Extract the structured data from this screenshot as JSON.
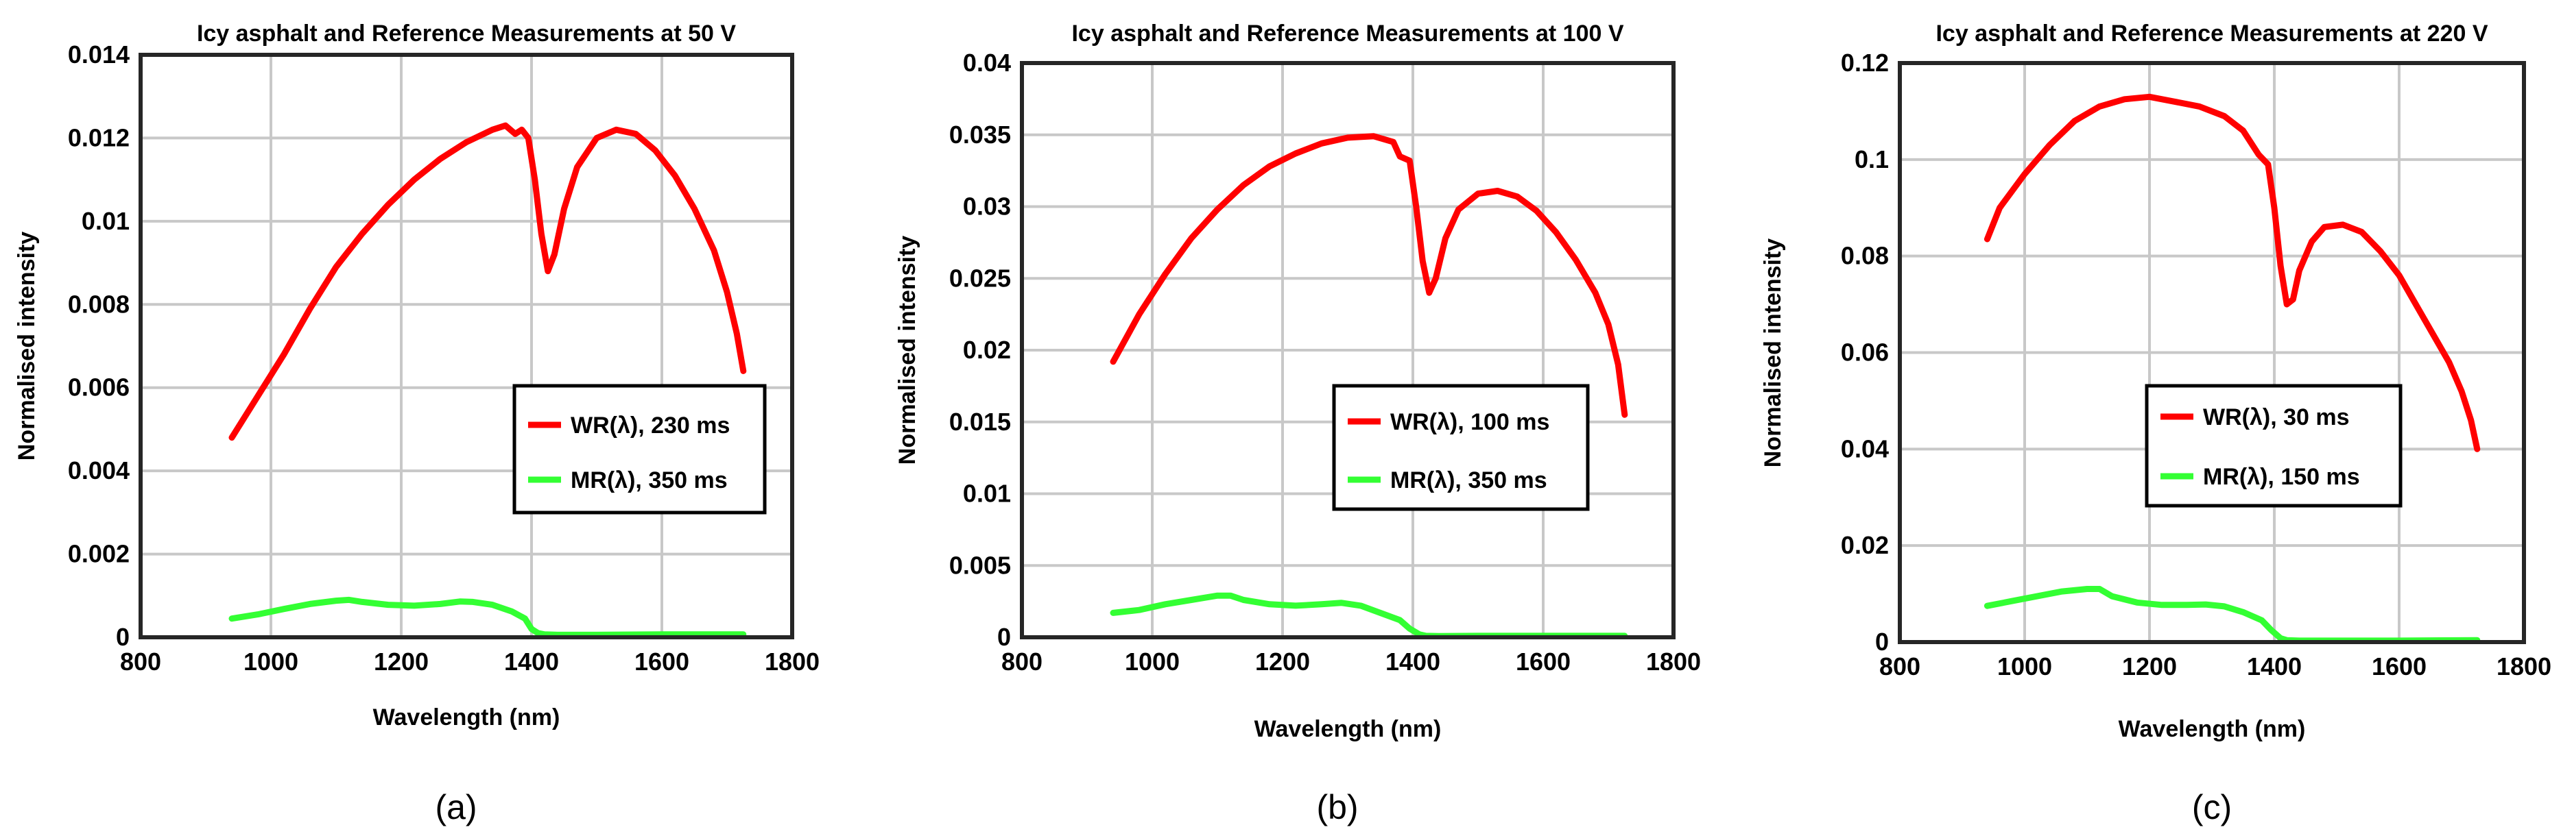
{
  "colors": {
    "wr": "#ff0000",
    "mr": "#33ff33",
    "grid": "#c8c8c8",
    "axis": "#262626"
  },
  "chart_data": [
    {
      "type": "line",
      "panel_label": "(a)",
      "title": "Icy asphalt and Reference Measurements at 50 V",
      "xlabel": "Wavelength (nm)",
      "ylabel": "Normalised intensity",
      "xlim": [
        800,
        1800
      ],
      "ylim": [
        0,
        0.014
      ],
      "xticks": [
        800,
        1000,
        1200,
        1400,
        1600,
        1800
      ],
      "xtick_labels": [
        "800",
        "1000",
        "1200",
        "1400",
        "1600",
        "1800"
      ],
      "yticks": [
        0,
        0.002,
        0.004,
        0.006,
        0.008,
        0.01,
        0.012,
        0.014
      ],
      "ytick_labels": [
        "0",
        "0.002",
        "0.004",
        "0.006",
        "0.008",
        "0.01",
        "0.012",
        "0.014"
      ],
      "grid": true,
      "legend_position": "center-right",
      "series": [
        {
          "name": "WR(λ), 230 ms",
          "color_key": "wr",
          "x": [
            940,
            980,
            1020,
            1060,
            1100,
            1140,
            1180,
            1220,
            1260,
            1300,
            1340,
            1360,
            1375,
            1385,
            1395,
            1405,
            1415,
            1425,
            1435,
            1450,
            1470,
            1500,
            1530,
            1560,
            1590,
            1620,
            1650,
            1680,
            1700,
            1715,
            1725
          ],
          "y": [
            0.0048,
            0.0058,
            0.0068,
            0.0079,
            0.0089,
            0.0097,
            0.0104,
            0.011,
            0.0115,
            0.0119,
            0.0122,
            0.0123,
            0.0121,
            0.0122,
            0.012,
            0.011,
            0.0097,
            0.0088,
            0.0092,
            0.0103,
            0.0113,
            0.012,
            0.0122,
            0.0121,
            0.0117,
            0.0111,
            0.0103,
            0.0093,
            0.0083,
            0.0073,
            0.0064
          ]
        },
        {
          "name": "MR(λ), 350 ms",
          "color_key": "mr",
          "x": [
            940,
            980,
            1020,
            1060,
            1100,
            1120,
            1140,
            1180,
            1220,
            1260,
            1290,
            1310,
            1340,
            1370,
            1390,
            1400,
            1410,
            1420,
            1440,
            1500,
            1600,
            1725
          ],
          "y": [
            0.00045,
            0.00055,
            0.00068,
            0.0008,
            0.00088,
            0.0009,
            0.00085,
            0.00078,
            0.00076,
            0.0008,
            0.00086,
            0.00085,
            0.00078,
            0.00062,
            0.00045,
            0.0002,
            0.0001,
            7e-05,
            6e-05,
            6e-05,
            7e-05,
            7e-05
          ]
        }
      ]
    },
    {
      "type": "line",
      "panel_label": "(b)",
      "title": "Icy asphalt and Reference Measurements at 100 V",
      "xlabel": "Wavelength (nm)",
      "ylabel": "Normalised intensity",
      "xlim": [
        800,
        1800
      ],
      "ylim": [
        0,
        0.04
      ],
      "xticks": [
        800,
        1000,
        1200,
        1400,
        1600,
        1800
      ],
      "xtick_labels": [
        "800",
        "1000",
        "1200",
        "1400",
        "1600",
        "1800"
      ],
      "yticks": [
        0,
        0.005,
        0.01,
        0.015,
        0.02,
        0.025,
        0.03,
        0.035,
        0.04
      ],
      "ytick_labels": [
        "0",
        "0.005",
        "0.01",
        "0.015",
        "0.02",
        "0.025",
        "0.03",
        "0.035",
        "0.04"
      ],
      "grid": true,
      "legend_position": "center-right",
      "series": [
        {
          "name": "WR(λ), 100 ms",
          "color_key": "wr",
          "x": [
            940,
            980,
            1020,
            1060,
            1100,
            1140,
            1180,
            1220,
            1260,
            1300,
            1340,
            1370,
            1380,
            1395,
            1405,
            1415,
            1425,
            1435,
            1450,
            1470,
            1500,
            1530,
            1560,
            1590,
            1620,
            1650,
            1680,
            1700,
            1715,
            1725
          ],
          "y": [
            0.0192,
            0.0225,
            0.0253,
            0.0278,
            0.0298,
            0.0315,
            0.0328,
            0.0337,
            0.0344,
            0.0348,
            0.0349,
            0.0345,
            0.0335,
            0.0332,
            0.03,
            0.0262,
            0.024,
            0.025,
            0.0278,
            0.0298,
            0.0309,
            0.0311,
            0.0307,
            0.0297,
            0.0282,
            0.0263,
            0.024,
            0.0218,
            0.019,
            0.0155
          ]
        },
        {
          "name": "MR(λ), 350 ms",
          "color_key": "mr",
          "x": [
            940,
            980,
            1020,
            1060,
            1100,
            1120,
            1140,
            1180,
            1220,
            1260,
            1290,
            1320,
            1350,
            1380,
            1395,
            1410,
            1420,
            1440,
            1500,
            1600,
            1725
          ],
          "y": [
            0.0017,
            0.0019,
            0.0023,
            0.0026,
            0.0029,
            0.0029,
            0.0026,
            0.0023,
            0.0022,
            0.0023,
            0.0024,
            0.0022,
            0.0017,
            0.0012,
            0.0006,
            0.0002,
            0.0001,
            8e-05,
            0.0001,
            0.0001,
            0.0001
          ]
        }
      ]
    },
    {
      "type": "line",
      "panel_label": "(c)",
      "title": "Icy asphalt and Reference Measurements at 220 V",
      "xlabel": "Wavelength (nm)",
      "ylabel": "Normalised intensity",
      "xlim": [
        800,
        1800
      ],
      "ylim": [
        0,
        0.12
      ],
      "xticks": [
        800,
        1000,
        1200,
        1400,
        1600,
        1800
      ],
      "xtick_labels": [
        "800",
        "1000",
        "1200",
        "1400",
        "1600",
        "1800"
      ],
      "yticks": [
        0,
        0.02,
        0.04,
        0.06,
        0.08,
        0.1,
        0.12
      ],
      "ytick_labels": [
        "0",
        "0.02",
        "0.04",
        "0.06",
        "0.08",
        "0.1",
        "0.12"
      ],
      "grid": true,
      "legend_position": "center-right",
      "series": [
        {
          "name": "WR(λ), 30 ms",
          "color_key": "wr",
          "x": [
            940,
            960,
            1000,
            1040,
            1080,
            1120,
            1160,
            1200,
            1240,
            1280,
            1320,
            1350,
            1375,
            1390,
            1400,
            1410,
            1420,
            1430,
            1440,
            1460,
            1480,
            1510,
            1540,
            1570,
            1600,
            1640,
            1680,
            1700,
            1715,
            1725
          ],
          "y": [
            0.0835,
            0.09,
            0.097,
            0.103,
            0.108,
            0.111,
            0.1125,
            0.113,
            0.112,
            0.111,
            0.109,
            0.106,
            0.101,
            0.099,
            0.09,
            0.078,
            0.07,
            0.071,
            0.077,
            0.083,
            0.086,
            0.0865,
            0.085,
            0.081,
            0.076,
            0.067,
            0.058,
            0.052,
            0.046,
            0.04
          ]
        },
        {
          "name": "MR(λ), 150 ms",
          "color_key": "mr",
          "x": [
            940,
            980,
            1020,
            1060,
            1100,
            1120,
            1140,
            1180,
            1220,
            1260,
            1290,
            1320,
            1350,
            1380,
            1395,
            1410,
            1420,
            1440,
            1500,
            1600,
            1725
          ],
          "y": [
            0.0075,
            0.0085,
            0.0095,
            0.0105,
            0.011,
            0.011,
            0.0095,
            0.0082,
            0.0077,
            0.0077,
            0.0078,
            0.0074,
            0.0062,
            0.0045,
            0.0025,
            0.0008,
            0.0004,
            0.0003,
            0.0003,
            0.0003,
            0.0004
          ]
        }
      ]
    }
  ]
}
